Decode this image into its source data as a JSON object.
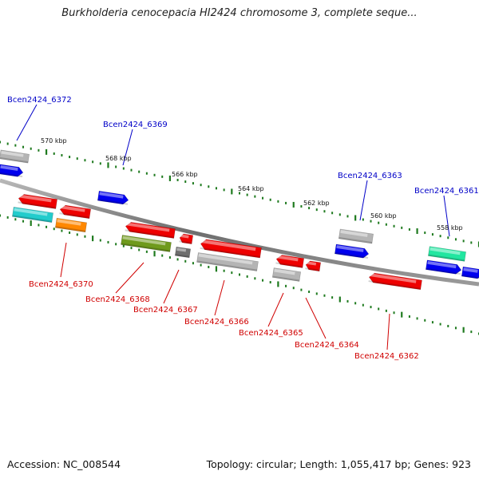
{
  "title": "Burkholderia cenocepacia HI2424 chromosome 3, complete seque...",
  "footer": {
    "accession": "Accession: NC_008544",
    "summary": "Topology: circular; Length: 1,055,417 bp; Genes: 923"
  },
  "colors": {
    "backbone": "#8a8a8a",
    "tick": "#1e7a1e",
    "label_forward": "#0000c8",
    "label_reverse": "#d00000"
  },
  "scale_labels": [
    "570 kbp",
    "568 kbp",
    "566 kbp",
    "564 kbp",
    "562 kbp",
    "560 kbp",
    "558 kbp"
  ],
  "gene_labels": {
    "forward": [
      "Bcen2424_6372",
      "Bcen2424_6369",
      "Bcen2424_6363",
      "Bcen2424_6361"
    ],
    "reverse": [
      "Bcen2424_6370",
      "Bcen2424_6368",
      "Bcen2424_6367",
      "Bcen2424_6366",
      "Bcen2424_6365",
      "Bcen2424_6364",
      "Bcen2424_6362"
    ]
  }
}
